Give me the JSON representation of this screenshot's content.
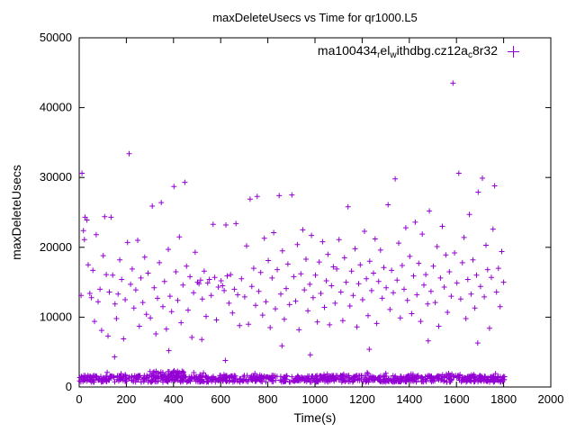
{
  "chart_data": {
    "type": "scatter",
    "title": "maxDeleteUsecs vs Time for qr1000.L5",
    "xlabel": "Time(s)",
    "ylabel": "maxDeleteUsecs",
    "xlim": [
      0,
      2000
    ],
    "ylim": [
      0,
      50000
    ],
    "x_ticks": [
      0,
      200,
      400,
      600,
      800,
      1000,
      1200,
      1400,
      1600,
      1800,
      2000
    ],
    "y_ticks": [
      0,
      10000,
      20000,
      30000,
      40000,
      50000
    ],
    "grid": false,
    "marker": "plus",
    "color": "#9400d3",
    "legend": {
      "label_plain": "ma100434_rel_withdbg.cz12a_c8r32",
      "position": "top-right-inside",
      "segments": [
        {
          "text": "ma100434"
        },
        {
          "text": "r",
          "sub": true
        },
        {
          "text": "el"
        },
        {
          "text": "w",
          "sub": true
        },
        {
          "text": "ithdbg.cz12a"
        },
        {
          "text": "c",
          "sub": true
        },
        {
          "text": "8r32"
        }
      ]
    },
    "points": [
      [
        8,
        13100
      ],
      [
        12,
        30600
      ],
      [
        18,
        22400
      ],
      [
        22,
        21100
      ],
      [
        25,
        24300
      ],
      [
        33,
        23900
      ],
      [
        38,
        17500
      ],
      [
        45,
        13400
      ],
      [
        52,
        12800
      ],
      [
        58,
        16700
      ],
      [
        65,
        9400
      ],
      [
        72,
        21800
      ],
      [
        80,
        12200
      ],
      [
        88,
        14000
      ],
      [
        95,
        8100
      ],
      [
        102,
        18800
      ],
      [
        108,
        24400
      ],
      [
        115,
        16100
      ],
      [
        122,
        7300
      ],
      [
        128,
        13600
      ],
      [
        135,
        24300
      ],
      [
        142,
        16000
      ],
      [
        150,
        4300
      ],
      [
        152,
        11900
      ],
      [
        158,
        9800
      ],
      [
        165,
        13300
      ],
      [
        172,
        18200
      ],
      [
        180,
        15400
      ],
      [
        188,
        6900
      ],
      [
        195,
        12500
      ],
      [
        205,
        20700
      ],
      [
        212,
        33400
      ],
      [
        218,
        14700
      ],
      [
        225,
        16900
      ],
      [
        232,
        11300
      ],
      [
        240,
        13900
      ],
      [
        248,
        21000
      ],
      [
        255,
        8700
      ],
      [
        262,
        15600
      ],
      [
        270,
        12100
      ],
      [
        278,
        18600
      ],
      [
        285,
        10400
      ],
      [
        292,
        16300
      ],
      [
        302,
        9900
      ],
      [
        310,
        25900
      ],
      [
        318,
        14200
      ],
      [
        325,
        7600
      ],
      [
        332,
        12700
      ],
      [
        340,
        17800
      ],
      [
        348,
        26400
      ],
      [
        355,
        11500
      ],
      [
        362,
        15100
      ],
      [
        370,
        8300
      ],
      [
        378,
        19700
      ],
      [
        380,
        5200
      ],
      [
        385,
        13000
      ],
      [
        392,
        10800
      ],
      [
        402,
        28700
      ],
      [
        410,
        16500
      ],
      [
        418,
        12400
      ],
      [
        425,
        21500
      ],
      [
        432,
        9200
      ],
      [
        440,
        14600
      ],
      [
        448,
        29300
      ],
      [
        455,
        17300
      ],
      [
        462,
        11000
      ],
      [
        470,
        15800
      ],
      [
        478,
        7100
      ],
      [
        485,
        13500
      ],
      [
        492,
        19300
      ],
      [
        502,
        15000
      ],
      [
        508,
        14800
      ],
      [
        515,
        15300
      ],
      [
        520,
        6800
      ],
      [
        522,
        12600
      ],
      [
        530,
        16600
      ],
      [
        538,
        10100
      ],
      [
        545,
        14900
      ],
      [
        552,
        15400
      ],
      [
        560,
        13100
      ],
      [
        568,
        23300
      ],
      [
        575,
        15700
      ],
      [
        582,
        9600
      ],
      [
        590,
        14300
      ],
      [
        602,
        15200
      ],
      [
        608,
        14500
      ],
      [
        615,
        13800
      ],
      [
        620,
        3800
      ],
      [
        622,
        23200
      ],
      [
        628,
        15900
      ],
      [
        635,
        12000
      ],
      [
        642,
        16100
      ],
      [
        650,
        10600
      ],
      [
        658,
        14000
      ],
      [
        665,
        23400
      ],
      [
        672,
        13200
      ],
      [
        680,
        8800
      ],
      [
        688,
        15500
      ],
      [
        702,
        12900
      ],
      [
        710,
        20200
      ],
      [
        718,
        9000
      ],
      [
        725,
        26900
      ],
      [
        732,
        14400
      ],
      [
        740,
        17000
      ],
      [
        748,
        11700
      ],
      [
        755,
        27300
      ],
      [
        762,
        13700
      ],
      [
        770,
        16400
      ],
      [
        778,
        10300
      ],
      [
        785,
        21300
      ],
      [
        792,
        12200
      ],
      [
        802,
        18100
      ],
      [
        810,
        8500
      ],
      [
        818,
        15600
      ],
      [
        825,
        22100
      ],
      [
        832,
        11200
      ],
      [
        840,
        16800
      ],
      [
        848,
        27400
      ],
      [
        855,
        13300
      ],
      [
        860,
        5900
      ],
      [
        862,
        19500
      ],
      [
        870,
        9700
      ],
      [
        878,
        14100
      ],
      [
        885,
        17600
      ],
      [
        892,
        11800
      ],
      [
        902,
        27500
      ],
      [
        910,
        15800
      ],
      [
        918,
        12300
      ],
      [
        925,
        20400
      ],
      [
        932,
        8200
      ],
      [
        940,
        16200
      ],
      [
        948,
        22500
      ],
      [
        955,
        13900
      ],
      [
        962,
        18300
      ],
      [
        970,
        10900
      ],
      [
        978,
        14700
      ],
      [
        980,
        4600
      ],
      [
        985,
        21700
      ],
      [
        992,
        12800
      ],
      [
        1002,
        16000
      ],
      [
        1010,
        9300
      ],
      [
        1018,
        17900
      ],
      [
        1025,
        13400
      ],
      [
        1032,
        20800
      ],
      [
        1040,
        11400
      ],
      [
        1048,
        15200
      ],
      [
        1055,
        19000
      ],
      [
        1062,
        8900
      ],
      [
        1070,
        14500
      ],
      [
        1078,
        17200
      ],
      [
        1085,
        12000
      ],
      [
        1092,
        16900
      ],
      [
        1102,
        21100
      ],
      [
        1110,
        13600
      ],
      [
        1118,
        9500
      ],
      [
        1125,
        18500
      ],
      [
        1132,
        15000
      ],
      [
        1140,
        25800
      ],
      [
        1148,
        11600
      ],
      [
        1155,
        16600
      ],
      [
        1162,
        13100
      ],
      [
        1170,
        19800
      ],
      [
        1178,
        8600
      ],
      [
        1185,
        14800
      ],
      [
        1192,
        17500
      ],
      [
        1202,
        12500
      ],
      [
        1210,
        22300
      ],
      [
        1218,
        15500
      ],
      [
        1225,
        10200
      ],
      [
        1230,
        5400
      ],
      [
        1232,
        18000
      ],
      [
        1240,
        13800
      ],
      [
        1248,
        16300
      ],
      [
        1255,
        21200
      ],
      [
        1262,
        9100
      ],
      [
        1270,
        15100
      ],
      [
        1278,
        19600
      ],
      [
        1285,
        12700
      ],
      [
        1292,
        17100
      ],
      [
        1302,
        14200
      ],
      [
        1310,
        26100
      ],
      [
        1318,
        11100
      ],
      [
        1325,
        16700
      ],
      [
        1332,
        13500
      ],
      [
        1340,
        29800
      ],
      [
        1348,
        15300
      ],
      [
        1355,
        20600
      ],
      [
        1362,
        9900
      ],
      [
        1370,
        17400
      ],
      [
        1378,
        14000
      ],
      [
        1385,
        22800
      ],
      [
        1392,
        12400
      ],
      [
        1402,
        18700
      ],
      [
        1410,
        10500
      ],
      [
        1418,
        15900
      ],
      [
        1425,
        23600
      ],
      [
        1432,
        13200
      ],
      [
        1440,
        17700
      ],
      [
        1448,
        9400
      ],
      [
        1455,
        21900
      ],
      [
        1462,
        14600
      ],
      [
        1470,
        16100
      ],
      [
        1478,
        11900
      ],
      [
        1480,
        6600
      ],
      [
        1485,
        25200
      ],
      [
        1492,
        13700
      ],
      [
        1502,
        17300
      ],
      [
        1510,
        12100
      ],
      [
        1518,
        20100
      ],
      [
        1525,
        8700
      ],
      [
        1532,
        15600
      ],
      [
        1540,
        23000
      ],
      [
        1548,
        14300
      ],
      [
        1555,
        18900
      ],
      [
        1562,
        10700
      ],
      [
        1570,
        16500
      ],
      [
        1578,
        13000
      ],
      [
        1585,
        43500
      ],
      [
        1592,
        19200
      ],
      [
        1602,
        14900
      ],
      [
        1610,
        30600
      ],
      [
        1618,
        12600
      ],
      [
        1625,
        17800
      ],
      [
        1632,
        21400
      ],
      [
        1640,
        9800
      ],
      [
        1648,
        15400
      ],
      [
        1655,
        24700
      ],
      [
        1662,
        13300
      ],
      [
        1670,
        18200
      ],
      [
        1678,
        11300
      ],
      [
        1685,
        16000
      ],
      [
        1690,
        6300
      ],
      [
        1692,
        27900
      ],
      [
        1702,
        14400
      ],
      [
        1710,
        29900
      ],
      [
        1718,
        12900
      ],
      [
        1725,
        20300
      ],
      [
        1732,
        16800
      ],
      [
        1740,
        8400
      ],
      [
        1748,
        15700
      ],
      [
        1755,
        22600
      ],
      [
        1762,
        28800
      ],
      [
        1770,
        13600
      ],
      [
        1778,
        17000
      ],
      [
        1785,
        11500
      ],
      [
        1792,
        19400
      ],
      [
        1800,
        15000
      ]
    ],
    "baseline_band": {
      "description": "dense band of samples near y=1000 across the full time range",
      "seed": 12345,
      "count": 900,
      "x_min": 0,
      "x_max": 1805,
      "y_min": 700,
      "y_max": 1650,
      "bump": {
        "count": 45,
        "x_min": 300,
        "x_max": 450,
        "y_min": 1400,
        "y_max": 2350
      },
      "sprinkle": {
        "count": 30,
        "x_min": 0,
        "x_max": 1805,
        "y_min": 1650,
        "y_max": 2100
      }
    }
  }
}
